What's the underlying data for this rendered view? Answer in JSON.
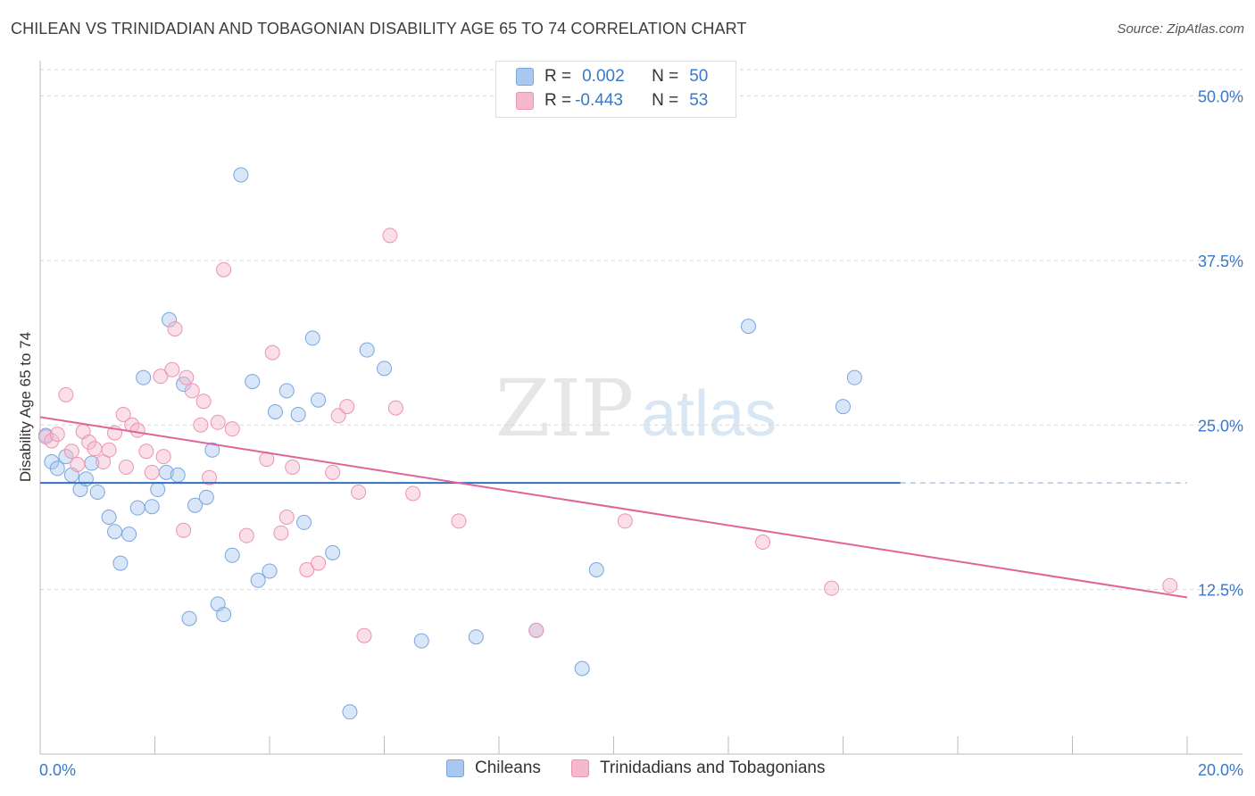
{
  "title": "CHILEAN VS TRINIDADIAN AND TOBAGONIAN DISABILITY AGE 65 TO 74 CORRELATION CHART",
  "source": "Source: ZipAtlas.com",
  "watermark": {
    "zip": "ZIP",
    "atlas": "atlas"
  },
  "colors": {
    "blue_fill": "#a9c8f0",
    "blue_stroke": "#7aa6de",
    "blue_line": "#2f6fc4",
    "pink_fill": "#f5b8cc",
    "pink_stroke": "#ec93b2",
    "pink_line": "#e0649a",
    "axis_label": "#3a78c8",
    "grid": "#d6d6d6"
  },
  "stats": {
    "rows": [
      {
        "r_label": "R =",
        "r_value": "0.002",
        "n_label": "N =",
        "n_value": "50"
      },
      {
        "r_label": "R =",
        "r_value": "-0.443",
        "n_label": "N =",
        "n_value": "53"
      }
    ]
  },
  "legend": {
    "items": [
      {
        "label": "Chileans"
      },
      {
        "label": "Trinidadians and Tobagonians"
      }
    ]
  },
  "chart_data": {
    "type": "scatter",
    "title": "CHILEAN VS TRINIDADIAN AND TOBAGONIAN DISABILITY AGE 65 TO 74 CORRELATION CHART",
    "xlabel": "",
    "ylabel": "Disability Age 65 to 74",
    "xlim": [
      0,
      20
    ],
    "ylim": [
      0,
      52
    ],
    "x_tick_labels": [
      "0.0%",
      "20.0%"
    ],
    "y_ticks": [
      12.5,
      25.0,
      37.5,
      50.0
    ],
    "y_tick_labels": [
      "12.5%",
      "25.0%",
      "37.5%",
      "50.0%"
    ],
    "grid": "horizontal dashed",
    "legend_position": "bottom",
    "series": [
      {
        "name": "Chileans",
        "points": [
          [
            0.1,
            24.2
          ],
          [
            0.2,
            22.2
          ],
          [
            0.3,
            21.7
          ],
          [
            0.45,
            22.6
          ],
          [
            0.55,
            21.2
          ],
          [
            0.7,
            20.1
          ],
          [
            0.8,
            20.9
          ],
          [
            0.9,
            22.1
          ],
          [
            1.0,
            19.9
          ],
          [
            1.2,
            18.0
          ],
          [
            1.3,
            16.9
          ],
          [
            1.4,
            14.5
          ],
          [
            1.55,
            16.7
          ],
          [
            1.7,
            18.7
          ],
          [
            1.8,
            28.6
          ],
          [
            1.95,
            18.8
          ],
          [
            2.05,
            20.1
          ],
          [
            2.2,
            21.4
          ],
          [
            2.25,
            33.0
          ],
          [
            2.4,
            21.2
          ],
          [
            2.5,
            28.1
          ],
          [
            2.6,
            10.3
          ],
          [
            2.7,
            18.9
          ],
          [
            2.9,
            19.5
          ],
          [
            3.0,
            23.1
          ],
          [
            3.1,
            11.4
          ],
          [
            3.2,
            10.6
          ],
          [
            3.35,
            15.1
          ],
          [
            3.5,
            44.0
          ],
          [
            3.7,
            28.3
          ],
          [
            3.8,
            13.2
          ],
          [
            4.0,
            13.9
          ],
          [
            4.1,
            26.0
          ],
          [
            4.3,
            27.6
          ],
          [
            4.5,
            25.8
          ],
          [
            4.6,
            17.6
          ],
          [
            4.75,
            31.6
          ],
          [
            4.85,
            26.9
          ],
          [
            5.1,
            15.3
          ],
          [
            5.4,
            3.2
          ],
          [
            5.7,
            30.7
          ],
          [
            6.0,
            29.3
          ],
          [
            6.65,
            8.6
          ],
          [
            7.6,
            8.9
          ],
          [
            8.65,
            9.4
          ],
          [
            9.45,
            6.5
          ],
          [
            9.7,
            14.0
          ],
          [
            12.35,
            32.5
          ],
          [
            14.0,
            26.4
          ],
          [
            14.2,
            28.6
          ]
        ],
        "trend": {
          "x": [
            0,
            15
          ],
          "y": [
            20.6,
            20.6
          ],
          "dashed_to_x": 20
        }
      },
      {
        "name": "Trinidadians and Tobagonians",
        "points": [
          [
            0.1,
            24.1
          ],
          [
            0.2,
            23.8
          ],
          [
            0.3,
            24.3
          ],
          [
            0.45,
            27.3
          ],
          [
            0.55,
            23.0
          ],
          [
            0.65,
            22.0
          ],
          [
            0.75,
            24.5
          ],
          [
            0.85,
            23.7
          ],
          [
            0.95,
            23.2
          ],
          [
            1.1,
            22.2
          ],
          [
            1.2,
            23.1
          ],
          [
            1.3,
            24.4
          ],
          [
            1.45,
            25.8
          ],
          [
            1.5,
            21.8
          ],
          [
            1.6,
            25.0
          ],
          [
            1.7,
            24.6
          ],
          [
            1.85,
            23.0
          ],
          [
            1.95,
            21.4
          ],
          [
            2.1,
            28.7
          ],
          [
            2.15,
            22.6
          ],
          [
            2.3,
            29.2
          ],
          [
            2.35,
            32.3
          ],
          [
            2.5,
            17.0
          ],
          [
            2.55,
            28.6
          ],
          [
            2.65,
            27.6
          ],
          [
            2.8,
            25.0
          ],
          [
            2.85,
            26.8
          ],
          [
            2.95,
            21.0
          ],
          [
            3.1,
            25.2
          ],
          [
            3.2,
            36.8
          ],
          [
            3.35,
            24.7
          ],
          [
            3.6,
            16.6
          ],
          [
            3.95,
            22.4
          ],
          [
            4.05,
            30.5
          ],
          [
            4.2,
            16.8
          ],
          [
            4.3,
            18.0
          ],
          [
            4.4,
            21.8
          ],
          [
            4.65,
            14.0
          ],
          [
            4.85,
            14.5
          ],
          [
            5.1,
            21.4
          ],
          [
            5.2,
            25.7
          ],
          [
            5.35,
            26.4
          ],
          [
            5.55,
            19.9
          ],
          [
            5.65,
            9.0
          ],
          [
            6.1,
            39.4
          ],
          [
            6.2,
            26.3
          ],
          [
            6.5,
            19.8
          ],
          [
            7.3,
            17.7
          ],
          [
            8.65,
            9.4
          ],
          [
            10.2,
            17.7
          ],
          [
            12.6,
            16.1
          ],
          [
            13.8,
            12.6
          ],
          [
            19.7,
            12.8
          ]
        ],
        "trend": {
          "x": [
            0,
            20
          ],
          "y": [
            25.6,
            11.9
          ]
        }
      }
    ]
  }
}
